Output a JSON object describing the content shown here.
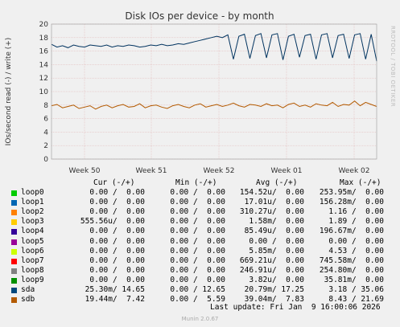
{
  "chart_data": {
    "type": "line",
    "title": "Disk IOs per device - by month",
    "ylabel": "IOs/second read (-) / write (+)",
    "ylim": [
      0,
      20
    ],
    "yticks": [
      0,
      2,
      4,
      6,
      8,
      10,
      12,
      14,
      16,
      18,
      20
    ],
    "xticks": [
      "Week 50",
      "Week 51",
      "Week 52",
      "Week 01",
      "Week 02"
    ],
    "grid": true,
    "series": [
      {
        "name": "sda",
        "color": "#00335f",
        "values": [
          17.0,
          16.6,
          16.8,
          16.5,
          16.9,
          16.7,
          16.6,
          16.9,
          16.8,
          16.7,
          16.9,
          16.6,
          16.8,
          16.7,
          16.9,
          16.8,
          16.6,
          16.7,
          16.9,
          16.8,
          17.0,
          16.8,
          16.9,
          17.1,
          17.0,
          17.2,
          17.4,
          17.6,
          17.8,
          18.0,
          18.2,
          18.0,
          18.4,
          14.8,
          18.2,
          18.5,
          14.9,
          18.3,
          18.6,
          15.0,
          18.4,
          18.6,
          14.7,
          18.2,
          18.5,
          15.1,
          18.3,
          18.5,
          14.8,
          18.4,
          18.6,
          15.0,
          18.3,
          18.5,
          14.9,
          18.4,
          18.6,
          14.8,
          18.5,
          14.5
        ]
      },
      {
        "name": "sdb",
        "color": "#b35a00",
        "values": [
          7.9,
          8.1,
          7.6,
          7.8,
          8.0,
          7.5,
          7.7,
          7.9,
          7.4,
          7.8,
          8.0,
          7.6,
          7.9,
          8.1,
          7.7,
          7.8,
          8.2,
          7.6,
          7.9,
          8.0,
          7.7,
          7.5,
          7.9,
          8.1,
          7.8,
          7.6,
          8.0,
          8.2,
          7.7,
          7.9,
          8.1,
          7.8,
          8.0,
          8.3,
          7.9,
          7.7,
          8.1,
          8.0,
          7.8,
          8.2,
          7.9,
          8.0,
          7.6,
          8.1,
          8.3,
          7.8,
          8.0,
          7.7,
          8.2,
          8.0,
          7.9,
          8.4,
          7.8,
          8.1,
          8.0,
          8.6,
          7.9,
          8.4,
          8.1,
          7.8
        ]
      }
    ]
  },
  "watermark": "RRDTOOL / TOBI OETIKER",
  "legend": {
    "header": {
      "cur": "Cur (-/+)",
      "min": "Min (-/+)",
      "avg": "Avg (-/+)",
      "max": "Max (-/+)"
    },
    "rows": [
      {
        "name": "loop0",
        "color": "#00cc00",
        "cur": "0.00 /  0.00",
        "min": "0.00 /  0.00",
        "avg": "154.52u/  0.00",
        "max": "253.95m/  0.00"
      },
      {
        "name": "loop1",
        "color": "#0066b3",
        "cur": "0.00 /  0.00",
        "min": "0.00 /  0.00",
        "avg": "17.01u/  0.00",
        "max": "156.28m/  0.00"
      },
      {
        "name": "loop2",
        "color": "#ff8000",
        "cur": "0.00 /  0.00",
        "min": "0.00 /  0.00",
        "avg": "310.27u/  0.00",
        "max": "1.16 /  0.00"
      },
      {
        "name": "loop3",
        "color": "#ffcc00",
        "cur": "555.56u/  0.00",
        "min": "0.00 /  0.00",
        "avg": "1.58m/  0.00",
        "max": "1.89 /  0.00"
      },
      {
        "name": "loop4",
        "color": "#330099",
        "cur": "0.00 /  0.00",
        "min": "0.00 /  0.00",
        "avg": "85.49u/  0.00",
        "max": "196.67m/  0.00"
      },
      {
        "name": "loop5",
        "color": "#990099",
        "cur": "0.00 /  0.00",
        "min": "0.00 /  0.00",
        "avg": "0.00 /  0.00",
        "max": "0.00 /  0.00"
      },
      {
        "name": "loop6",
        "color": "#ccff00",
        "cur": "0.00 /  0.00",
        "min": "0.00 /  0.00",
        "avg": "5.85m/  0.00",
        "max": "4.53 /  0.00"
      },
      {
        "name": "loop7",
        "color": "#ff0000",
        "cur": "0.00 /  0.00",
        "min": "0.00 /  0.00",
        "avg": "669.21u/  0.00",
        "max": "745.58m/  0.00"
      },
      {
        "name": "loop8",
        "color": "#808080",
        "cur": "0.00 /  0.00",
        "min": "0.00 /  0.00",
        "avg": "246.91u/  0.00",
        "max": "254.80m/  0.00"
      },
      {
        "name": "loop9",
        "color": "#008f00",
        "cur": "0.00 /  0.00",
        "min": "0.00 /  0.00",
        "avg": "3.82u/  0.00",
        "max": "35.81m/  0.00"
      },
      {
        "name": "sda",
        "color": "#00487d",
        "cur": "25.30m/ 14.65",
        "min": "0.00 / 12.65",
        "avg": "20.79m/ 17.25",
        "max": "3.18 / 35.06"
      },
      {
        "name": "sdb",
        "color": "#b35a00",
        "cur": "19.44m/  7.42",
        "min": "0.00 /  5.59",
        "avg": "39.04m/  7.83",
        "max": "8.43 / 21.69"
      }
    ],
    "last_update": "Last update: Fri Jan  9 16:00:06 2026"
  },
  "footer": "Munin 2.0.67"
}
